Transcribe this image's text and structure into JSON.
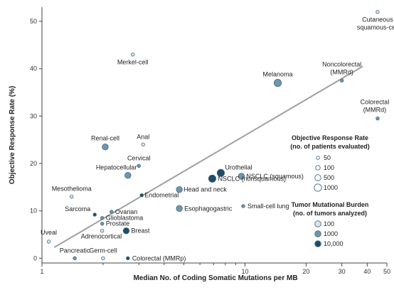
{
  "chart_data": {
    "type": "scatter",
    "xlabel": "Median No. of Coding Somatic Mutations per MB",
    "ylabel": "Objective Response Rate (%)",
    "x_scale": "log",
    "xlim": [
      1,
      50
    ],
    "ylim": [
      -1,
      53
    ],
    "x_ticks": [
      1,
      10,
      20,
      30,
      40,
      50
    ],
    "x_tick_labels": [
      "1",
      "10",
      "20",
      "30",
      "40",
      "50"
    ],
    "y_ticks": [
      0,
      10,
      20,
      30,
      40,
      50
    ],
    "y_tick_labels": [
      "0",
      "10",
      "20",
      "30",
      "40",
      "50"
    ],
    "trendline": [
      [
        1.15,
        2.3
      ],
      [
        38,
        40.5
      ]
    ],
    "points": [
      {
        "label": "Cutaneous squamous-cell",
        "x": 45,
        "y": 52,
        "patients": 50,
        "tumors": 100
      },
      {
        "label": "Merkel-cell",
        "x": 2.8,
        "y": 43,
        "patients": 50,
        "tumors": 100
      },
      {
        "label": "Melanoma",
        "x": 14.5,
        "y": 37,
        "patients": 1000,
        "tumors": 1000
      },
      {
        "label": "Noncolorectal (MMRd)",
        "x": 30,
        "y": 37.5,
        "patients": 50,
        "tumors": 1000
      },
      {
        "label": "Colorectal (MMRd)",
        "x": 45,
        "y": 29.5,
        "patients": 50,
        "tumors": 1000
      },
      {
        "label": "Renal-cell",
        "x": 2.05,
        "y": 23.5,
        "patients": 500,
        "tumors": 1000
      },
      {
        "label": "Anal",
        "x": 3.15,
        "y": 24,
        "patients": 50,
        "tumors": 100
      },
      {
        "label": "Cervical",
        "x": 3.0,
        "y": 19.5,
        "patients": 50,
        "tumors": 1000
      },
      {
        "label": "Hepatocellular",
        "x": 2.65,
        "y": 17.5,
        "patients": 500,
        "tumors": 1000
      },
      {
        "label": "Urothelial",
        "x": 7.6,
        "y": 18,
        "patients": 1000,
        "tumors": 10000
      },
      {
        "label": "NSCLC (squamous)",
        "x": 9.6,
        "y": 17.3,
        "patients": 500,
        "tumors": 1000
      },
      {
        "label": "NSCLC (nonsquamous)",
        "x": 6.9,
        "y": 16.8,
        "patients": 1000,
        "tumors": 10000
      },
      {
        "label": "Head and neck",
        "x": 4.75,
        "y": 14.5,
        "patients": 500,
        "tumors": 1000
      },
      {
        "label": "Endometrial",
        "x": 3.1,
        "y": 13.3,
        "patients": 50,
        "tumors": 10000
      },
      {
        "label": "Mesothelioma",
        "x": 1.4,
        "y": 13,
        "patients": 50,
        "tumors": 100
      },
      {
        "label": "Esophagogastric",
        "x": 4.75,
        "y": 10.5,
        "patients": 500,
        "tumors": 1000
      },
      {
        "label": "Small-cell lung",
        "x": 9.8,
        "y": 11,
        "patients": 50,
        "tumors": 1000
      },
      {
        "label": "Sarcoma",
        "x": 1.82,
        "y": 9.2,
        "patients": 50,
        "tumors": 10000
      },
      {
        "label": "Ovarian",
        "x": 2.2,
        "y": 9.8,
        "patients": 50,
        "tumors": 1000
      },
      {
        "label": "Glioblastoma",
        "x": 1.98,
        "y": 8.5,
        "patients": 50,
        "tumors": 1000
      },
      {
        "label": "Prostate",
        "x": 1.98,
        "y": 7.3,
        "patients": 50,
        "tumors": 1000
      },
      {
        "label": "Adrenocortical",
        "x": 1.98,
        "y": 5.8,
        "patients": 50,
        "tumors": 100
      },
      {
        "label": "Breast",
        "x": 2.6,
        "y": 5.8,
        "patients": 500,
        "tumors": 10000
      },
      {
        "label": "Uveal",
        "x": 1.08,
        "y": 3.5,
        "patients": 50,
        "tumors": 100
      },
      {
        "label": "Pancreatic",
        "x": 1.45,
        "y": 0,
        "patients": 50,
        "tumors": 1000
      },
      {
        "label": "Germ-cell",
        "x": 2.0,
        "y": 0,
        "patients": 50,
        "tumors": 100
      },
      {
        "label": "Colorectal (MMRp)",
        "x": 2.65,
        "y": 0,
        "patients": 50,
        "tumors": 10000
      }
    ],
    "legend": {
      "placement": "right",
      "size_title": [
        "Objective Response Rate",
        "(no. of patients evaluated)"
      ],
      "size_entries": [
        {
          "label": "50",
          "value": 50
        },
        {
          "label": "100",
          "value": 100
        },
        {
          "label": "500",
          "value": 500
        },
        {
          "label": "1000",
          "value": 1000
        }
      ],
      "color_title": [
        "Tumor Mutational Burden",
        "(no. of tumors analyzed)"
      ],
      "color_entries": [
        {
          "label": "100",
          "value": 100
        },
        {
          "label": "1000",
          "value": 1000
        },
        {
          "label": "10,000",
          "value": 10000
        }
      ]
    },
    "colors": {
      "low": "#d6e4ec",
      "mid": "#6f97ab",
      "high": "#1d4d68",
      "trendline": "#a0a0a0",
      "axis": "#444444",
      "stroke": "#4a6b7e"
    }
  }
}
